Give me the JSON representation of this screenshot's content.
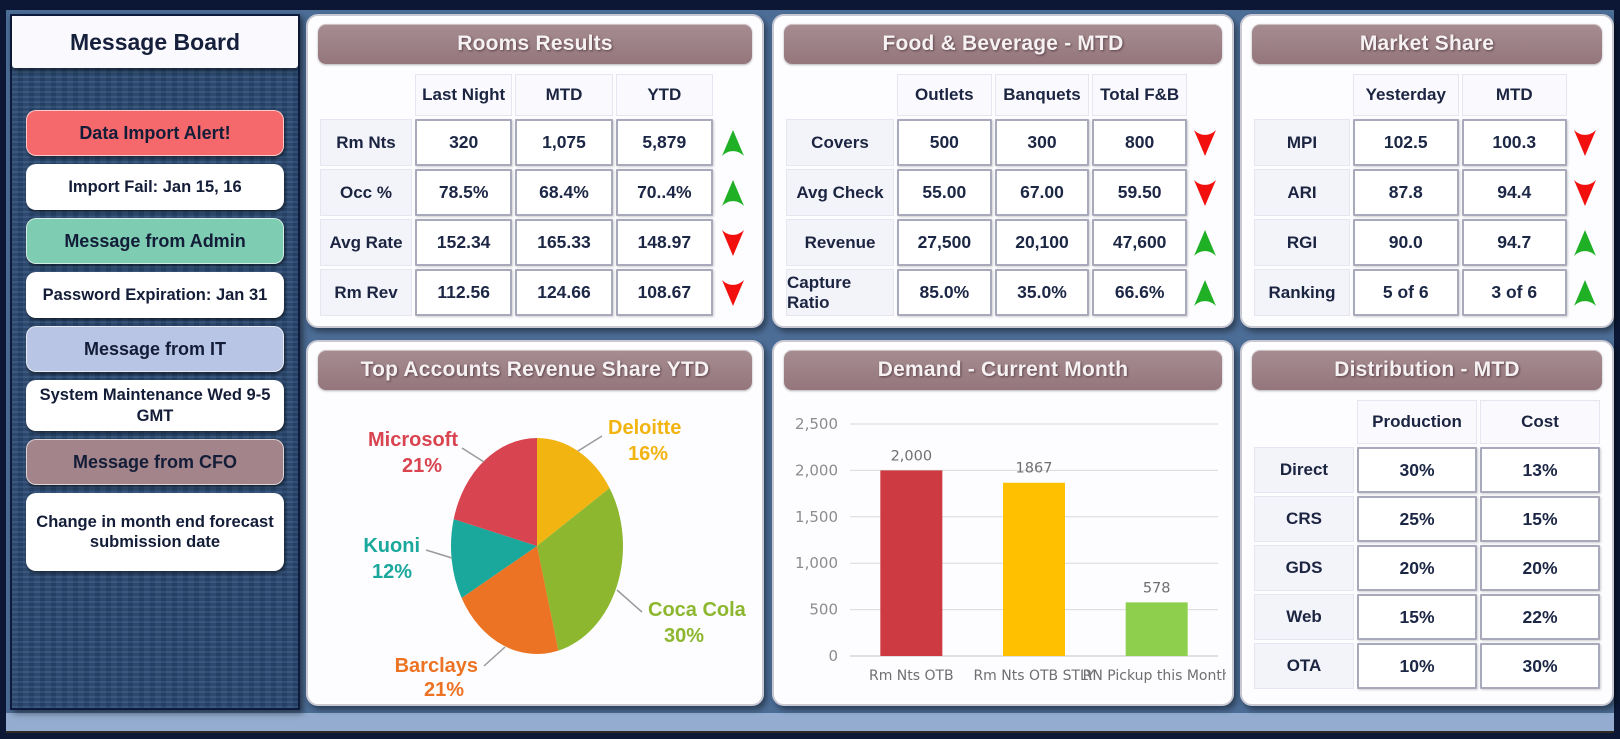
{
  "message_board": {
    "title": "Message Board",
    "items": [
      {
        "label": "Data Import Alert!",
        "variant": "alert"
      },
      {
        "label": "Import Fail: Jan 15, 16",
        "variant": "plain"
      },
      {
        "label": "Message from Admin",
        "variant": "admin"
      },
      {
        "label": "Password Expiration: Jan 31",
        "variant": "plain"
      },
      {
        "label": "Message from IT",
        "variant": "it"
      },
      {
        "label": "System Maintenance Wed 9-5 GMT",
        "variant": "plain"
      },
      {
        "label": "Message from CFO",
        "variant": "cfo"
      },
      {
        "label": "Change in month end forecast submission date",
        "variant": "plain"
      }
    ]
  },
  "rooms_results": {
    "title": "Rooms Results",
    "columns": [
      "Last Night",
      "MTD",
      "YTD"
    ],
    "rows": [
      {
        "label": "Rm Nts",
        "values": [
          "320",
          "1,075",
          "5,879"
        ],
        "trend": "up"
      },
      {
        "label": "Occ %",
        "values": [
          "78.5%",
          "68.4%",
          "70..4%"
        ],
        "trend": "up"
      },
      {
        "label": "Avg Rate",
        "values": [
          "152.34",
          "165.33",
          "148.97"
        ],
        "trend": "down"
      },
      {
        "label": "Rm Rev",
        "values": [
          "112.56",
          "124.66",
          "108.67"
        ],
        "trend": "down"
      }
    ]
  },
  "food_beverage": {
    "title": "Food & Beverage - MTD",
    "columns": [
      "Outlets",
      "Banquets",
      "Total F&B"
    ],
    "rows": [
      {
        "label": "Covers",
        "values": [
          "500",
          "300",
          "800"
        ],
        "trend": "down"
      },
      {
        "label": "Avg Check",
        "values": [
          "55.00",
          "67.00",
          "59.50"
        ],
        "trend": "down"
      },
      {
        "label": "Revenue",
        "values": [
          "27,500",
          "20,100",
          "47,600"
        ],
        "trend": "up"
      },
      {
        "label": "Capture Ratio",
        "values": [
          "85.0%",
          "35.0%",
          "66.6%"
        ],
        "trend": "up"
      }
    ]
  },
  "market_share": {
    "title": "Market Share",
    "columns": [
      "Yesterday",
      "MTD"
    ],
    "rows": [
      {
        "label": "MPI",
        "values": [
          "102.5",
          "100.3"
        ],
        "trend": "down"
      },
      {
        "label": "ARI",
        "values": [
          "87.8",
          "94.4"
        ],
        "trend": "down"
      },
      {
        "label": "RGI",
        "values": [
          "90.0",
          "94.7"
        ],
        "trend": "up"
      },
      {
        "label": "Ranking",
        "values": [
          "5 of 6",
          "3 of 6"
        ],
        "trend": "up"
      }
    ]
  },
  "distribution": {
    "title": "Distribution - MTD",
    "columns": [
      "Production",
      "Cost"
    ],
    "rows": [
      {
        "label": "Direct",
        "values": [
          "30%",
          "13%"
        ]
      },
      {
        "label": "CRS",
        "values": [
          "25%",
          "15%"
        ]
      },
      {
        "label": "GDS",
        "values": [
          "20%",
          "20%"
        ]
      },
      {
        "label": "Web",
        "values": [
          "15%",
          "22%"
        ]
      },
      {
        "label": "OTA",
        "values": [
          "10%",
          "30%"
        ]
      }
    ]
  },
  "chart_data": [
    {
      "type": "pie",
      "title": "Top Accounts Revenue Share YTD",
      "labels": [
        "Deloitte",
        "Coca Cola",
        "Barclays",
        "Kuoni",
        "Microsoft"
      ],
      "values": [
        16,
        30,
        21,
        12,
        21
      ],
      "colors": [
        "#F2B411",
        "#8CB72F",
        "#EC7323",
        "#1AA89C",
        "#D8444F"
      ],
      "start_angle": "top",
      "direction": "clockwise",
      "legend_position": "callout-labels"
    },
    {
      "type": "bar",
      "title": "Demand - Current Month",
      "categories": [
        "Rm Nts OTB",
        "Rm Nts OTB STLY",
        "RN Pickup this Month"
      ],
      "values": [
        2000,
        1867,
        578
      ],
      "value_labels": [
        "2,000",
        "1867",
        "578"
      ],
      "colors": [
        "#CE3A41",
        "#FFC000",
        "#8ED04E"
      ],
      "xlabel": "",
      "ylabel": "",
      "ylim": [
        0,
        2500
      ],
      "ytick_labels": [
        "0",
        "500",
        "1,000",
        "1,500",
        "2,000",
        "2,500"
      ],
      "grid": true,
      "legend_position": "none"
    }
  ],
  "colors": {
    "panel_header": "#9A8186",
    "alert_red": "#F5686C",
    "admin_teal": "#7ECDB3",
    "it_periwinkle": "#B9C5E5",
    "cfo_mauve": "#A3848A",
    "trend_up": "#1FB025",
    "trend_down": "#F2100E",
    "sidebar_navy": "#2C4B75",
    "frame_blue": "#4C6D96"
  }
}
